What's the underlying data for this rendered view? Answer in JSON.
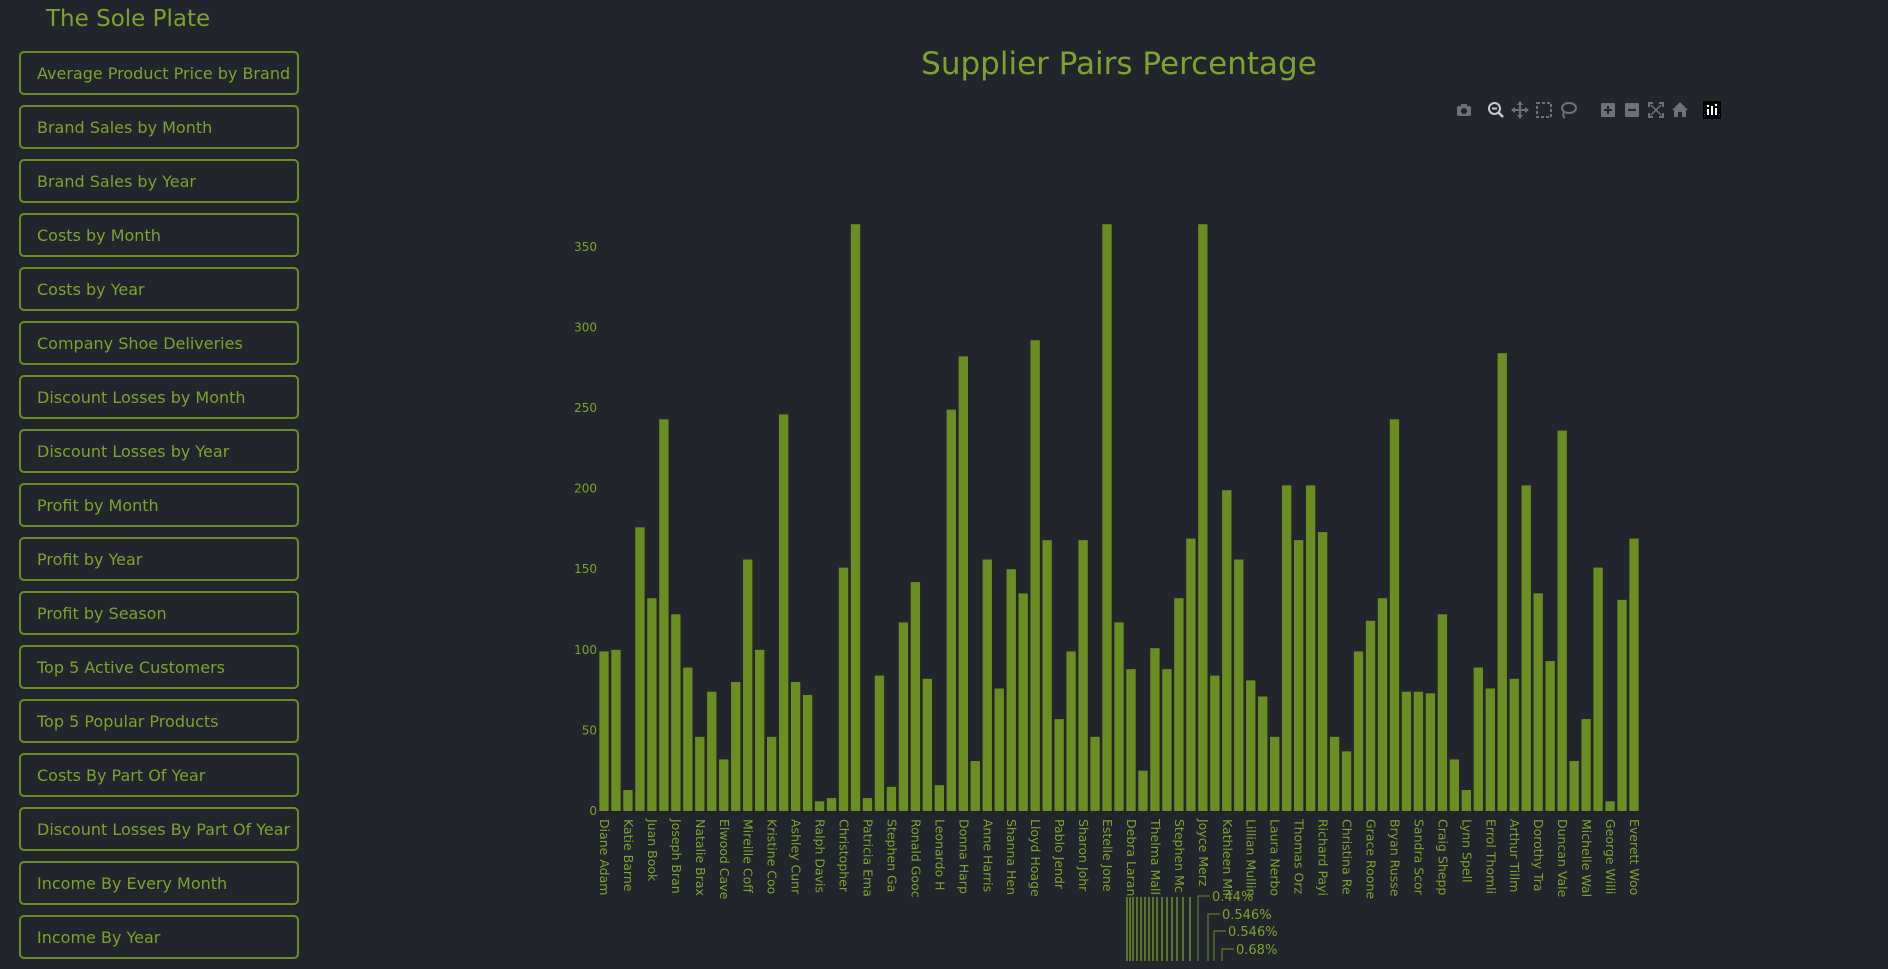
{
  "app": {
    "title": "The Sole Plate"
  },
  "sidebar": {
    "items": [
      {
        "label": "Average Product Price by Brand"
      },
      {
        "label": "Brand Sales by Month"
      },
      {
        "label": "Brand Sales by Year"
      },
      {
        "label": "Costs by Month"
      },
      {
        "label": "Costs by Year"
      },
      {
        "label": "Company Shoe Deliveries"
      },
      {
        "label": "Discount Losses by Month"
      },
      {
        "label": "Discount Losses by Year"
      },
      {
        "label": "Profit by Month"
      },
      {
        "label": "Profit by Year"
      },
      {
        "label": "Profit by Season"
      },
      {
        "label": "Top 5 Active Customers"
      },
      {
        "label": "Top 5 Popular Products"
      },
      {
        "label": "Costs By Part Of Year"
      },
      {
        "label": "Discount Losses By Part Of Year"
      },
      {
        "label": "Income By Every Month"
      },
      {
        "label": "Income By Year"
      }
    ]
  },
  "modebar": {
    "icons": [
      "camera-icon",
      "zoom-icon",
      "pan-icon",
      "box-select-icon",
      "lasso-select-icon",
      "zoom-in-icon",
      "zoom-out-icon",
      "autoscale-icon",
      "reset-axes-icon",
      "plotly-logo-icon"
    ]
  },
  "colors": {
    "background": "#22252b",
    "accent": "#6b8e23",
    "text": "#7da32e",
    "modebar_icon": "#6e7178"
  },
  "chart_data": {
    "type": "bar",
    "title": "Supplier Pairs Percentage",
    "xlabel": "",
    "ylabel": "",
    "ylim": [
      0,
      370
    ],
    "yticks": [
      0,
      50,
      100,
      150,
      200,
      250,
      300,
      350
    ],
    "grid": false,
    "visible_x_labels": [
      "Diane Adam",
      "Katie Barne",
      "Juan Book",
      "Joseph Bran",
      "Natalie Brax",
      "Elwood Cave",
      "Mireille Coff",
      "Kristine Coo",
      "Ashley Cunr",
      "Ralph Davis",
      "Christopher",
      "Patricia Ema",
      "Stephen Ga",
      "Ronald Gooc",
      "Leonardo H",
      "Donna Harp",
      "Anne Harris",
      "Shanna Hen",
      "Lloyd Hoage",
      "Pablo Jendr",
      "Sharon Johr",
      "Estelle Jone",
      "Debra Laran",
      "Thelma Mall",
      "Stephen Mc",
      "Joyce Merz",
      "Kathleen Mil",
      "Lillian Mullin",
      "Laura Nerbo",
      "Thomas Orz",
      "Richard Payi",
      "Christina Re",
      "Grace Roone",
      "Bryan Russe",
      "Sandra Scor",
      "Craig Shepp",
      "Lynn Spell",
      "Errol Thomli",
      "Arthur Tillm",
      "Dorothy Tra",
      "Duncan Vale",
      "Michelle Wal",
      "George Willi",
      "Everett Woo"
    ],
    "values": [
      99,
      100,
      13,
      176,
      132,
      243,
      122,
      89,
      46,
      74,
      32,
      80,
      156,
      100,
      46,
      246,
      80,
      72,
      6,
      8,
      151,
      364,
      8,
      84,
      15,
      117,
      142,
      82,
      16,
      249,
      282,
      31,
      156,
      76,
      150,
      135,
      292,
      168,
      57,
      99,
      168,
      46,
      364,
      117,
      88,
      25,
      101,
      88,
      132,
      169,
      364,
      84,
      199,
      156,
      81,
      71,
      46,
      202,
      168,
      202,
      173,
      46,
      37,
      99,
      118,
      132,
      243,
      74,
      74,
      73,
      122,
      32,
      13,
      89,
      76,
      284,
      82,
      202,
      135,
      93,
      236,
      31,
      57,
      151,
      6,
      131,
      169
    ],
    "bar_color": "#6b8e23",
    "secondary": {
      "type": "pie",
      "visible_labels": [
        "0.44%",
        "0.546%",
        "0.546%",
        "0.68%"
      ]
    }
  }
}
